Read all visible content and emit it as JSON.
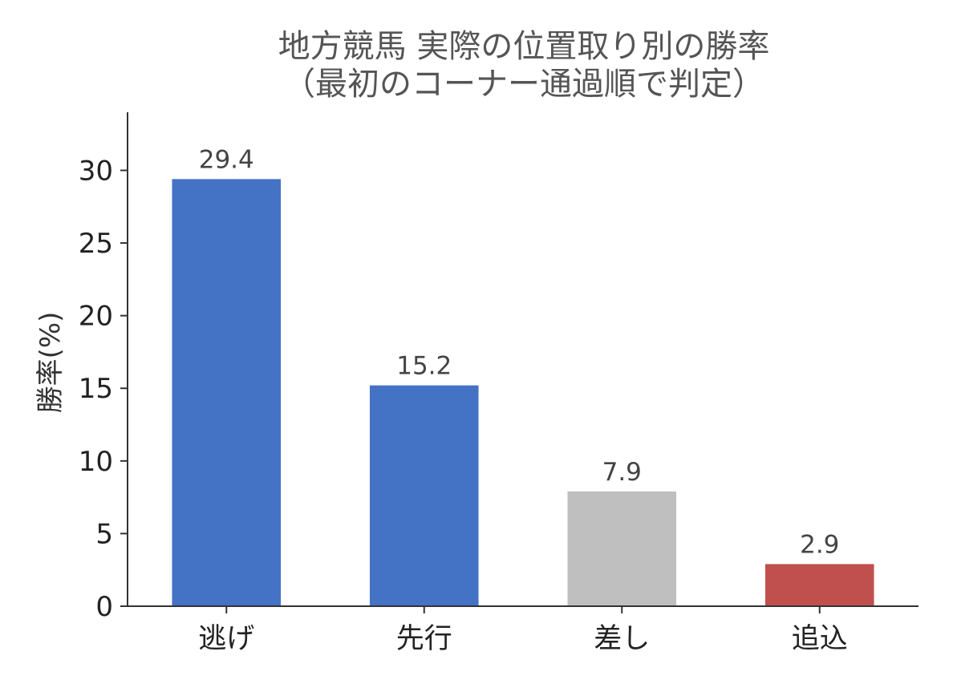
{
  "chart_data": {
    "type": "bar",
    "title_line1": "地方競馬 実際の位置取り別の勝率",
    "title_line2": "（最初のコーナー通過順で判定）",
    "xlabel": "",
    "ylabel": "勝率(%)",
    "categories": [
      "逃げ",
      "先行",
      "差し",
      "追込"
    ],
    "values": [
      29.4,
      15.2,
      7.9,
      2.9
    ],
    "value_labels": [
      "29.4",
      "15.2",
      "7.9",
      "2.9"
    ],
    "bar_colors": [
      "#4472c4",
      "#4472c4",
      "#bfbfbf",
      "#c0504d"
    ],
    "ylim": [
      0,
      34
    ],
    "yticks": [
      0,
      5,
      10,
      15,
      20,
      25,
      30
    ],
    "ytick_labels": [
      "0",
      "5",
      "10",
      "15",
      "20",
      "25",
      "30"
    ],
    "grid": false,
    "legend": "none",
    "axis_color": "#333333"
  }
}
